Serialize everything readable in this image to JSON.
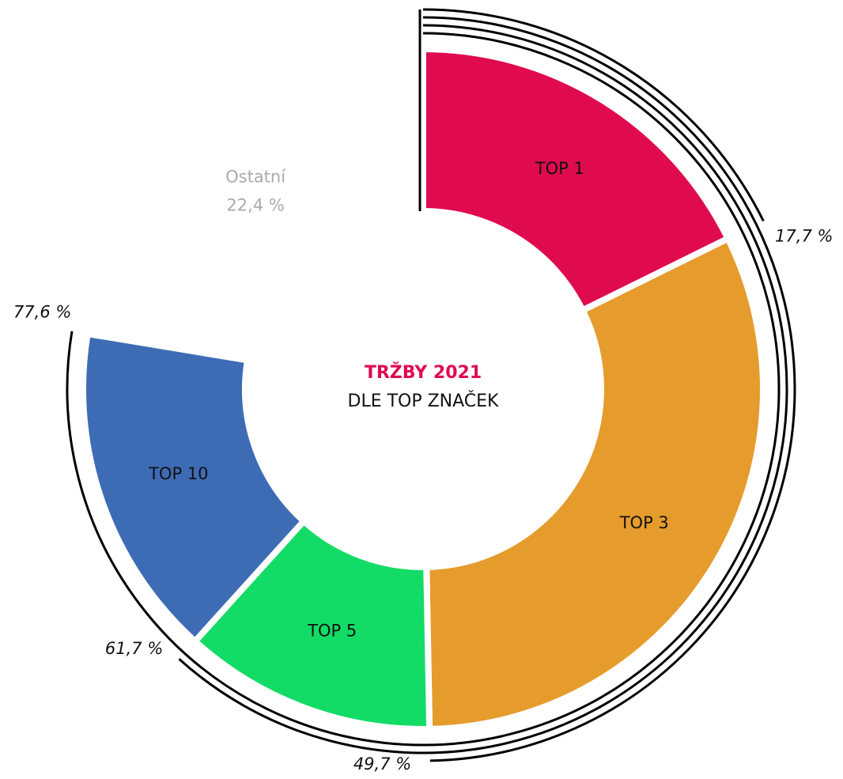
{
  "chart_data": {
    "type": "donut",
    "title": "TRŽBY 2021",
    "subtitle": "DLE TOP ZNAČEK",
    "categories": [
      "TOP 1",
      "TOP 3",
      "TOP 5",
      "TOP 10"
    ],
    "values": [
      17.7,
      49.7,
      61.7,
      77.6
    ],
    "value_labels": [
      "17,7 %",
      "49,7 %",
      "61,7 %",
      "77,6 %"
    ],
    "colors": [
      "#e00b4f",
      "#e59c2c",
      "#12dc66",
      "#3d6cb5"
    ],
    "other": {
      "label": "Ostatní",
      "value": 22.4,
      "value_label": "22,4 %",
      "color": "#aaaaaa"
    },
    "total": 100
  }
}
